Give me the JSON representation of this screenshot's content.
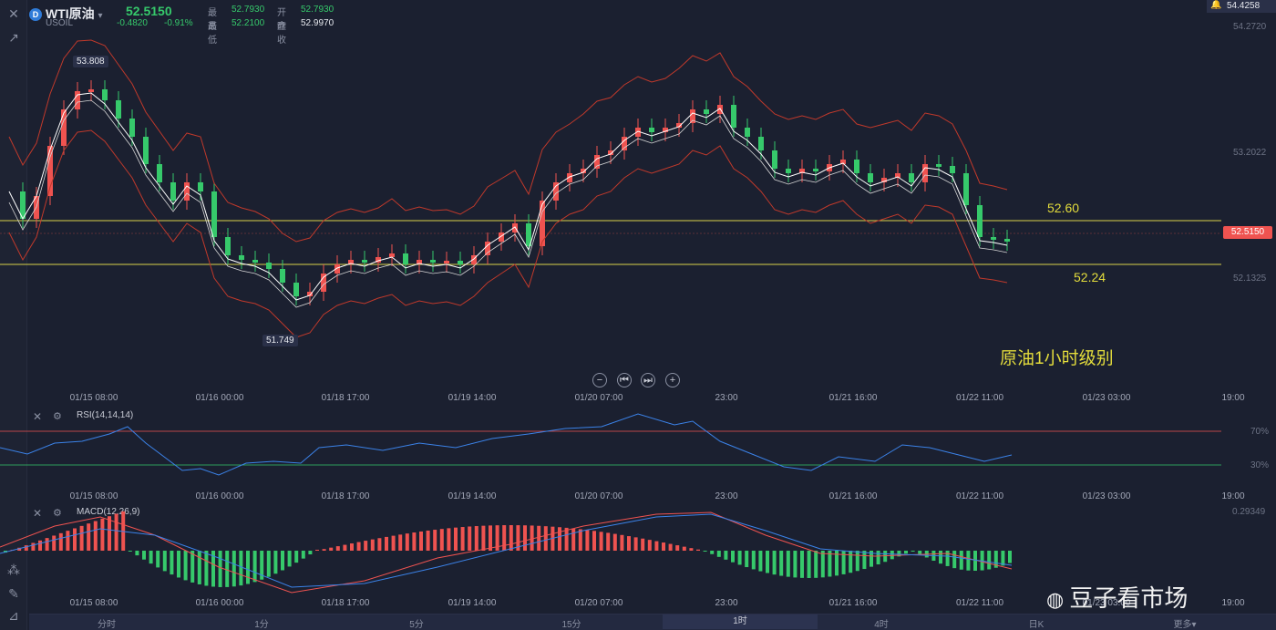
{
  "header": {
    "symbol": "WTI原油",
    "symbol_code": "USOIL",
    "symbol_badge": "D",
    "last_price": "52.5150",
    "change": "-0.4820",
    "change_pct": "-0.91%",
    "high_label": "最高",
    "high": "52.7930",
    "low_label": "最低",
    "low": "52.2100",
    "open_label": "开盘",
    "open": "52.7930",
    "prev_close_label": "昨收",
    "prev_close": "52.9970"
  },
  "price_axis": {
    "top_value": "54.4258",
    "labels": [
      "54.2720",
      "53.2022",
      "52.1325"
    ],
    "current_tag": "52.5150"
  },
  "annotations": {
    "high_marker": "53.808",
    "low_marker": "51.749",
    "resistance": "52.60",
    "support": "52.24",
    "caption": "原油1小时级别"
  },
  "time_axis": [
    "01/15 08:00",
    "01/16 00:00",
    "01/18 17:00",
    "01/19 14:00",
    "01/20 07:00",
    "23:00",
    "01/21 16:00",
    "01/22 11:00",
    "01/23 03:00",
    "19:00"
  ],
  "rsi": {
    "title": "RSI(14,14,14)",
    "upper": "70%",
    "lower": "30%"
  },
  "macd": {
    "title": "MACD(12,26,9)",
    "top_value": "0.29349"
  },
  "tabs": [
    "分时",
    "1分",
    "5分",
    "15分",
    "1时",
    "4时",
    "日K",
    "更多▾"
  ],
  "active_tab": "1时",
  "watermark": "豆子看市场",
  "colors": {
    "up": "#ef5350",
    "down": "#36c96b",
    "bg": "#1b2030",
    "support": "#d8d24a",
    "rsi_line": "#3b82e8"
  }
}
